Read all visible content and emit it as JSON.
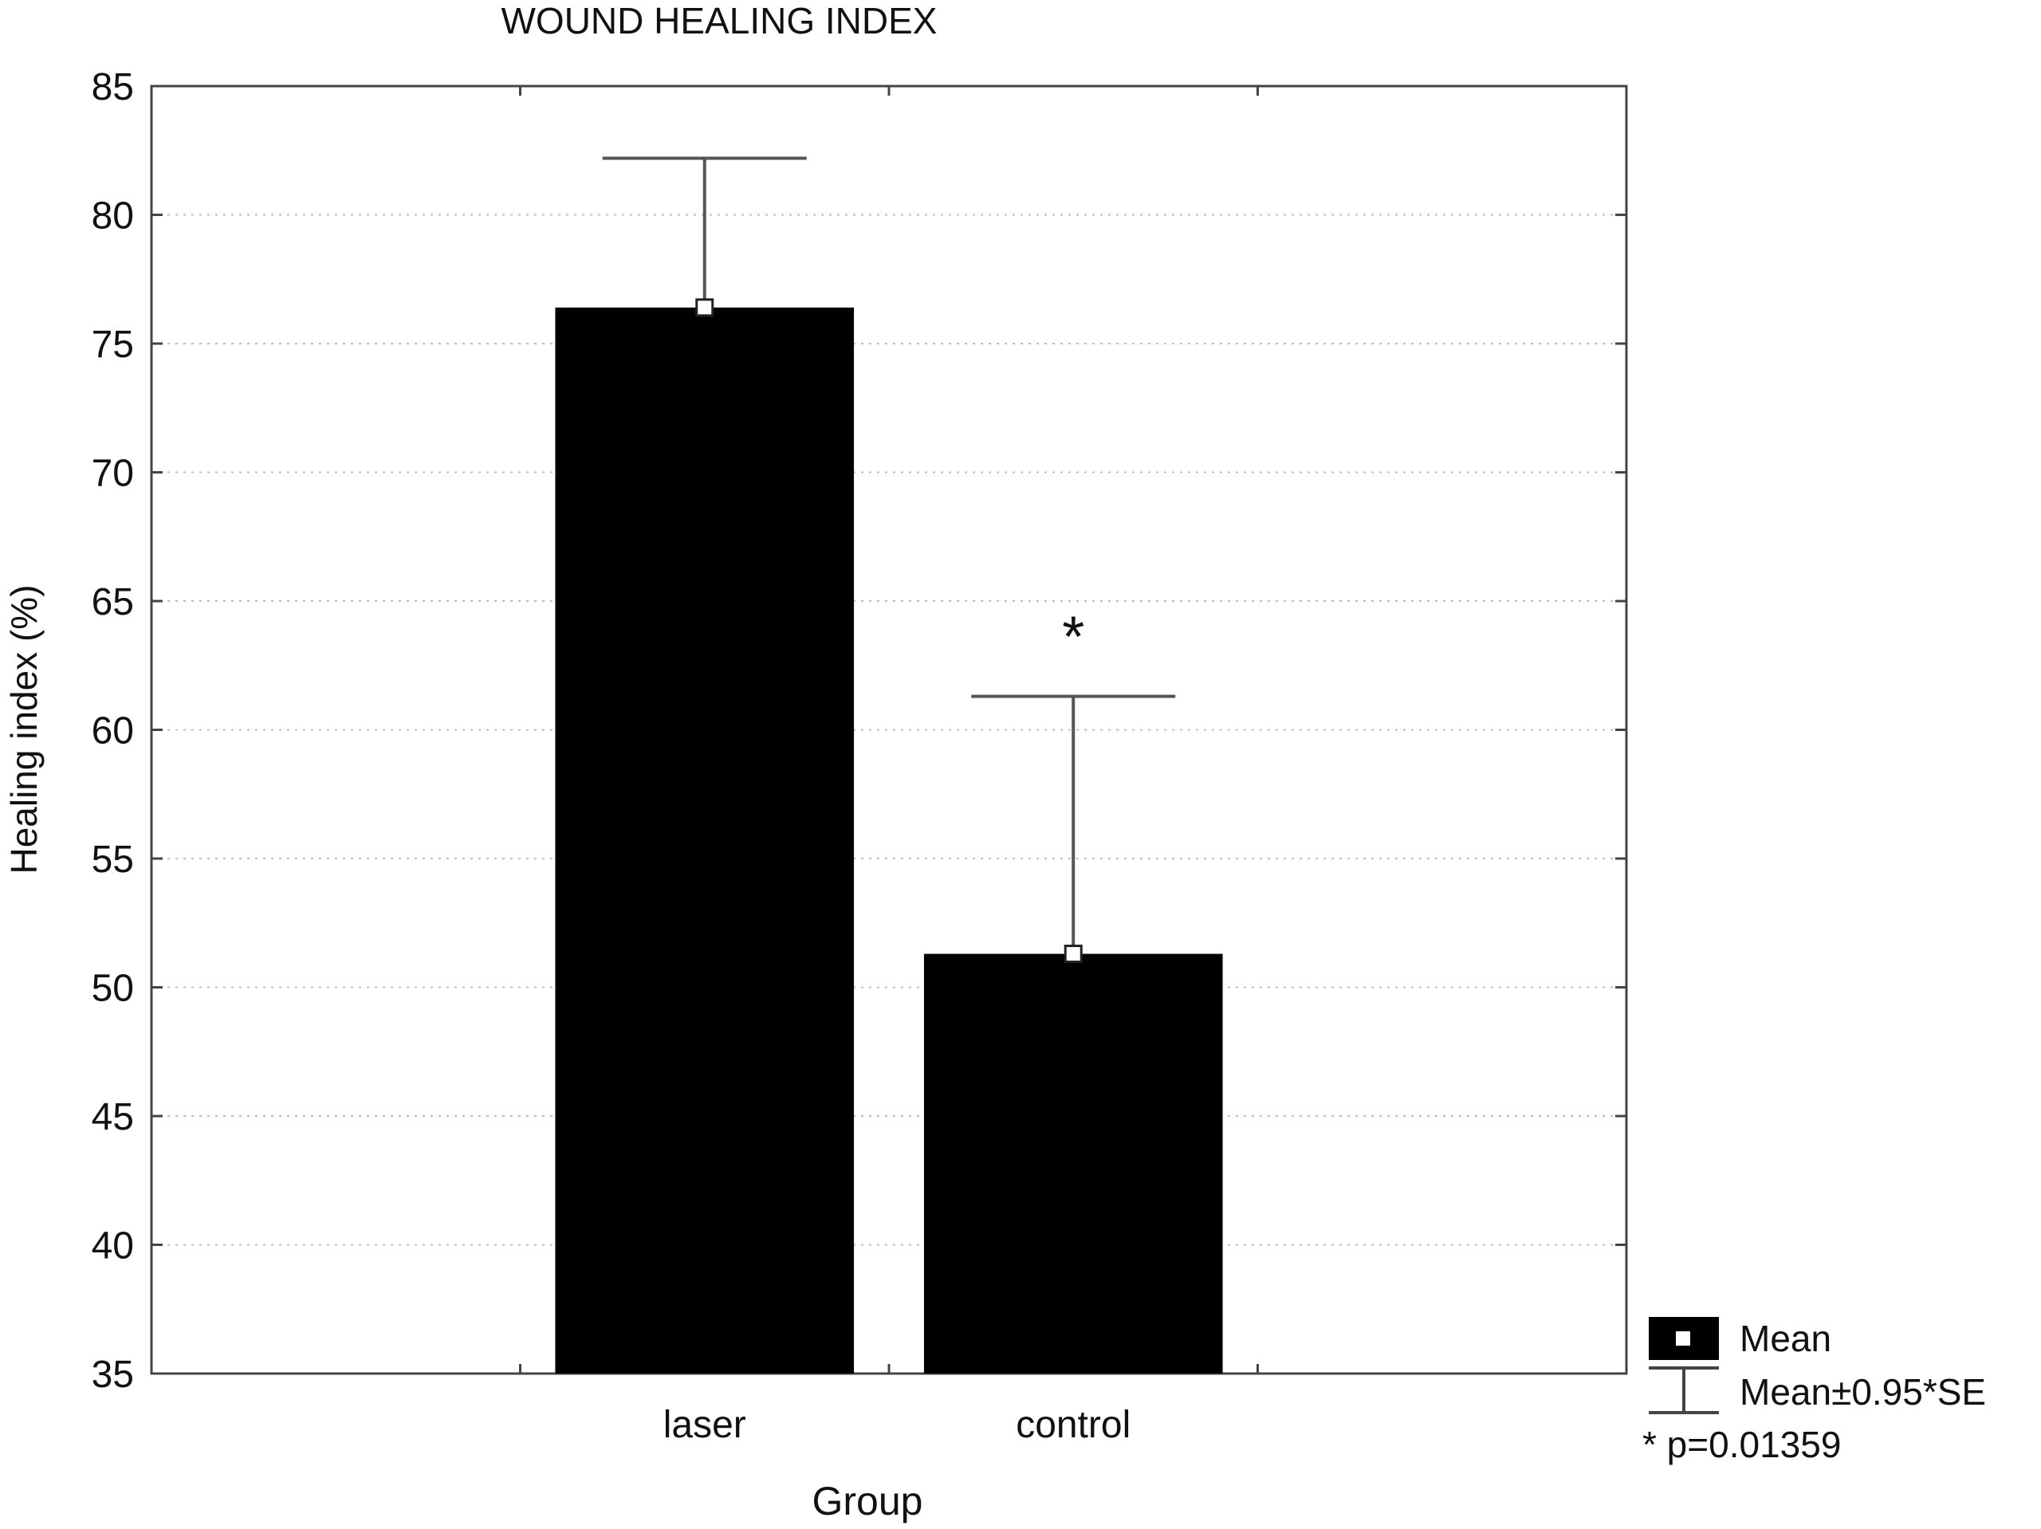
{
  "chart_data": {
    "type": "bar",
    "title": "WOUND HEALING INDEX",
    "xlabel": "Group",
    "ylabel": "Healing index (%)",
    "categories": [
      "laser",
      "control"
    ],
    "values": [
      76.4,
      51.3
    ],
    "error_upper": [
      82.2,
      61.3
    ],
    "ylim": [
      35,
      85
    ],
    "yticks": [
      35,
      40,
      45,
      50,
      55,
      60,
      65,
      70,
      75,
      80,
      85
    ],
    "grid": true,
    "bar_color": "#000000",
    "significance_marker": {
      "category": "control",
      "symbol": "*"
    },
    "legend": {
      "placement": "bottom-right",
      "entries": [
        "Mean",
        "Mean±0.95*SE"
      ],
      "note": "* p=0.01359"
    }
  }
}
